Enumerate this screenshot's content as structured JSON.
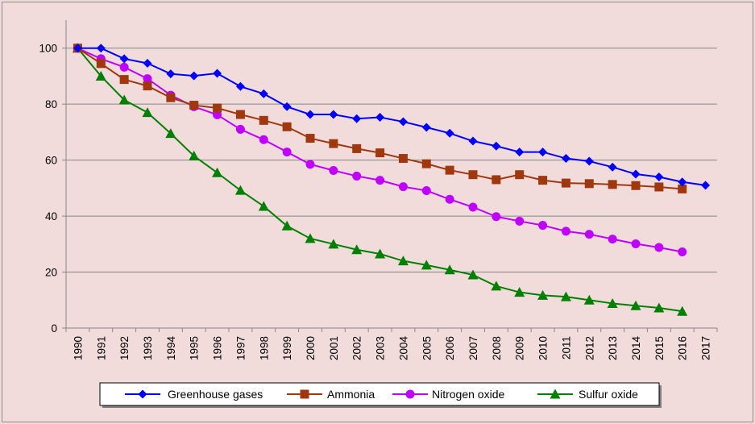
{
  "chart_data": {
    "type": "line",
    "title": "",
    "xlabel": "",
    "ylabel": "",
    "ylim": [
      0,
      110
    ],
    "yticks": [
      0,
      20,
      40,
      60,
      80,
      100
    ],
    "grid": "horizontal",
    "legend_position": "bottom",
    "categories": [
      "1990",
      "1991",
      "1992",
      "1993",
      "1994",
      "1995",
      "1996",
      "1997",
      "1998",
      "1999",
      "2000",
      "2001",
      "2002",
      "2003",
      "2004",
      "2005",
      "2006",
      "2007",
      "2008",
      "2009",
      "2010",
      "2011",
      "2012",
      "2013",
      "2014",
      "2015",
      "2016",
      "2017"
    ],
    "series": [
      {
        "name": "Greenhouse gases",
        "color": "#0000ff",
        "marker": "diamond",
        "values": [
          100,
          100,
          96.2,
          94.6,
          90.8,
          90.1,
          91,
          86.3,
          83.7,
          79.1,
          76.3,
          76.3,
          74.8,
          75.3,
          73.7,
          71.7,
          69.6,
          66.8,
          65,
          62.9,
          62.9,
          60.6,
          59.6,
          57.5,
          55,
          54,
          52.2,
          51
        ]
      },
      {
        "name": "Ammonia",
        "color": "#a0380f",
        "marker": "square",
        "values": [
          100,
          94.5,
          88.8,
          86.5,
          82.3,
          79.6,
          78.6,
          76.3,
          74.2,
          71.9,
          67.8,
          65.9,
          64.1,
          62.6,
          60.6,
          58.7,
          56.4,
          54.8,
          53,
          54.8,
          52.8,
          51.8,
          51.6,
          51.3,
          50.9,
          50.4,
          49.7,
          null
        ]
      },
      {
        "name": "Nitrogen oxide",
        "color": "#c000ff",
        "marker": "circle",
        "values": [
          100,
          96.2,
          93.2,
          89.1,
          83.2,
          79.1,
          76.2,
          71,
          67.3,
          62.9,
          58.5,
          56.3,
          54.3,
          52.8,
          50.5,
          49.1,
          46,
          43.2,
          39.8,
          38.2,
          36.7,
          34.6,
          33.5,
          31.8,
          30.1,
          28.8,
          27.2,
          null
        ]
      },
      {
        "name": "Sulfur oxide",
        "color": "#008000",
        "marker": "triangle",
        "values": [
          100,
          90,
          81.5,
          77,
          69.5,
          61.5,
          55.5,
          49.2,
          43.5,
          36.5,
          32,
          30,
          28,
          26.5,
          24,
          22.5,
          20.8,
          19,
          15,
          12.8,
          11.7,
          11.2,
          10,
          8.8,
          8,
          7.2,
          6,
          null
        ]
      }
    ]
  }
}
